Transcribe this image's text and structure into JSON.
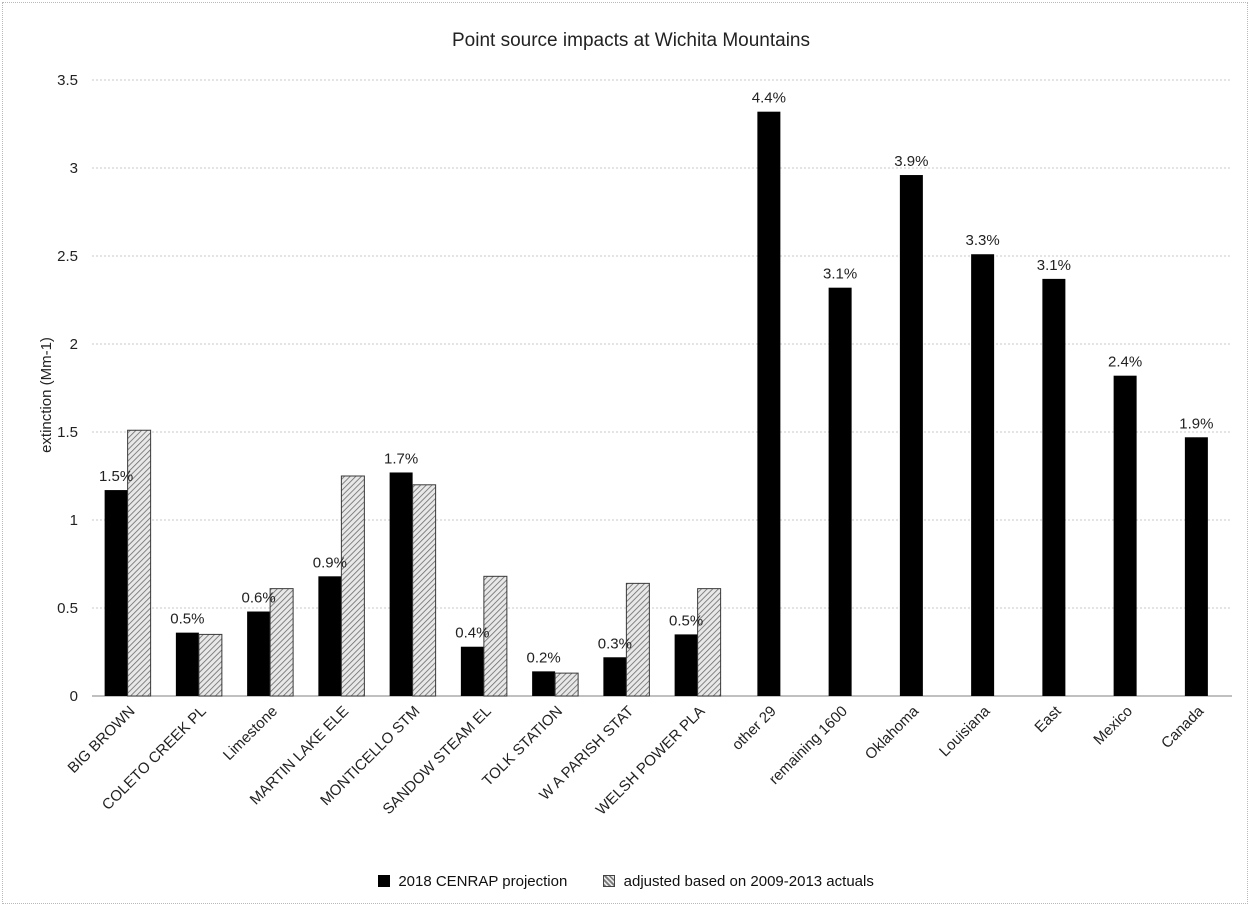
{
  "chart_data": {
    "type": "bar",
    "title": "Point source impacts at Wichita Mountains",
    "ylabel": "extinction (Mm-1)",
    "xlabel": "",
    "ylim": [
      0,
      3.5
    ],
    "yticks": [
      "0",
      "0.5",
      "1",
      "1.5",
      "2",
      "2.5",
      "3",
      "3.5"
    ],
    "grid": true,
    "legend_position": "bottom",
    "categories": [
      "BIG BROWN",
      "COLETO CREEK PL",
      "Limestone",
      "MARTIN LAKE ELE",
      "MONTICELLO STM",
      "SANDOW STEAM EL",
      "TOLK STATION",
      "W A PARISH STAT",
      "WELSH POWER PLA",
      "other 29",
      "remaining 1600",
      "Oklahoma",
      "Louisiana",
      "East",
      "Mexico",
      "Canada"
    ],
    "series": [
      {
        "name": "2018 CENRAP projection",
        "color": "#000000",
        "values": [
          1.17,
          0.36,
          0.48,
          0.68,
          1.27,
          0.28,
          0.14,
          0.22,
          0.35,
          3.32,
          2.32,
          2.96,
          2.51,
          2.37,
          1.82,
          1.47
        ]
      },
      {
        "name": "adjusted based on 2009-2013 actuals",
        "pattern": "hatched",
        "values": [
          1.51,
          0.35,
          0.61,
          1.25,
          1.2,
          0.68,
          0.13,
          0.64,
          0.61,
          null,
          null,
          null,
          null,
          null,
          null,
          null
        ]
      }
    ],
    "data_labels": [
      "1.5%",
      "0.5%",
      "0.6%",
      "0.9%",
      "1.7%",
      "0.4%",
      "0.2%",
      "0.3%",
      "0.5%",
      "4.4%",
      "3.1%",
      "3.9%",
      "3.3%",
      "3.1%",
      "2.4%",
      "1.9%"
    ]
  }
}
